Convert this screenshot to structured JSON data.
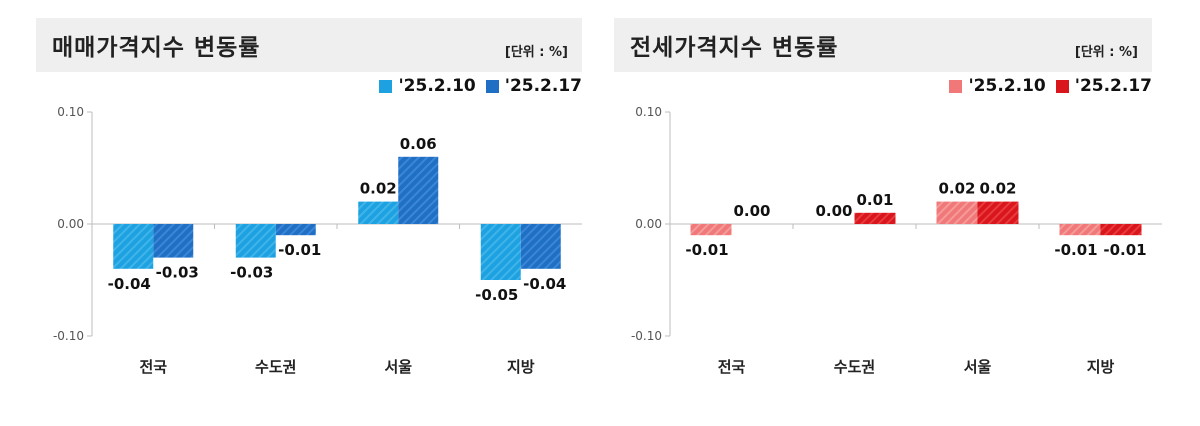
{
  "chart_data": [
    {
      "type": "bar",
      "title": "매매가격지수 변동률",
      "unit_label": "[단위 : %]",
      "categories": [
        "전국",
        "수도권",
        "서울",
        "지방"
      ],
      "series": [
        {
          "name": "'25.2.10",
          "values": [
            -0.04,
            -0.03,
            0.02,
            -0.05
          ],
          "labels": [
            "-0.04",
            "-0.03",
            "0.02",
            "-0.05"
          ],
          "color": "#1da1e0",
          "hatch": "#3fb4ea"
        },
        {
          "name": "'25.2.17",
          "values": [
            -0.03,
            -0.01,
            0.06,
            -0.04
          ],
          "labels": [
            "-0.03",
            "-0.01",
            "0.06",
            "-0.04"
          ],
          "color": "#1f6fc4",
          "hatch": "#3b86d6"
        }
      ],
      "ylim": [
        -0.1,
        0.1
      ],
      "yticks": [
        0.1,
        0.0,
        -0.1
      ],
      "ytick_labels": [
        "0.10",
        "0.00",
        "-0.10"
      ],
      "legend_position": "top-right"
    },
    {
      "type": "bar",
      "title": "전세가격지수 변동률",
      "unit_label": "[단위 : %]",
      "categories": [
        "전국",
        "수도권",
        "서울",
        "지방"
      ],
      "series": [
        {
          "name": "'25.2.10",
          "values": [
            -0.01,
            0.0,
            0.02,
            -0.01
          ],
          "labels": [
            "-0.01",
            "0.00",
            "0.02",
            "-0.01"
          ],
          "color": "#f07878",
          "hatch": "#f59a9a"
        },
        {
          "name": "'25.2.17",
          "values": [
            0.0,
            0.01,
            0.02,
            -0.01
          ],
          "labels": [
            "0.00",
            "0.01",
            "0.02",
            "-0.01"
          ],
          "color": "#d9161c",
          "hatch": "#e83a3f"
        }
      ],
      "ylim": [
        -0.1,
        0.1
      ],
      "yticks": [
        0.1,
        0.0,
        -0.1
      ],
      "ytick_labels": [
        "0.10",
        "0.00",
        "-0.10"
      ],
      "legend_position": "top-right"
    }
  ]
}
